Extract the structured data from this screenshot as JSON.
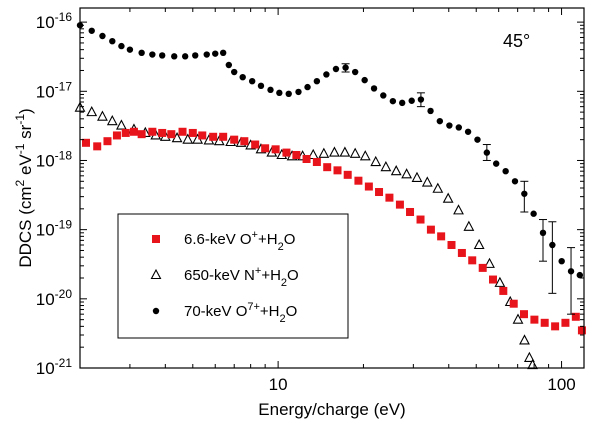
{
  "chart_data": {
    "type": "scatter",
    "xlabel": "Energy/charge (eV)",
    "ylabel_parts": [
      "DDCS (cm",
      "2",
      " eV",
      "-1",
      " sr",
      "-1",
      ")"
    ],
    "xlim": [
      2,
      120
    ],
    "ylim": [
      1e-21,
      1.6e-16
    ],
    "x_scale": "log",
    "y_scale": "log",
    "grid": false,
    "legend_position": "lower-left",
    "annotation": "45°",
    "x_ticks": [
      {
        "value": 10,
        "label": "10"
      },
      {
        "value": 100,
        "label": "100"
      }
    ],
    "y_ticks": [
      {
        "value": 1e-21,
        "base": "10",
        "exp": "-21"
      },
      {
        "value": 1e-20,
        "base": "10",
        "exp": "-20"
      },
      {
        "value": 1e-19,
        "base": "10",
        "exp": "-19"
      },
      {
        "value": 1e-18,
        "base": "10",
        "exp": "-18"
      },
      {
        "value": 1e-17,
        "base": "10",
        "exp": "-17"
      },
      {
        "value": 1e-16,
        "base": "10",
        "exp": "-16"
      }
    ],
    "series": [
      {
        "name": "6.6-keV O+ + H2O",
        "legend_parts": [
          [
            "6.6-keV O",
            ""
          ],
          [
            "+",
            "sup"
          ],
          [
            "+H",
            ""
          ],
          [
            "2",
            "sub"
          ],
          [
            "O",
            ""
          ]
        ],
        "marker": "square",
        "color": "#e8141b",
        "points": [
          [
            2.1,
            1.8e-18
          ],
          [
            2.3,
            1.6e-18
          ],
          [
            2.5,
            1.9e-18
          ],
          [
            2.7,
            2.3e-18
          ],
          [
            2.9,
            2.5e-18
          ],
          [
            3.1,
            2.6e-18
          ],
          [
            3.3,
            2.4e-18
          ],
          [
            3.6,
            2.6e-18
          ],
          [
            3.9,
            2.5e-18
          ],
          [
            4.2,
            2.4e-18
          ],
          [
            4.6,
            2.6e-18
          ],
          [
            5.0,
            2.5e-18
          ],
          [
            5.4,
            2.3e-18
          ],
          [
            5.9,
            2.2e-18
          ],
          [
            6.4,
            2.2e-18
          ],
          [
            7.0,
            2e-18
          ],
          [
            7.6,
            1.9e-18
          ],
          [
            8.3,
            1.7e-18
          ],
          [
            9.0,
            1.5e-18
          ],
          [
            9.8,
            1.45e-18
          ],
          [
            10.7,
            1.3e-18
          ],
          [
            11.6,
            1.2e-18
          ],
          [
            12.6,
            1.05e-18
          ],
          [
            13.7,
            9.5e-19
          ],
          [
            14.9,
            8e-19
          ],
          [
            16.2,
            7.2e-19
          ],
          [
            17.6,
            6.2e-19
          ],
          [
            19.2,
            5.1e-19
          ],
          [
            20.9,
            4.2e-19
          ],
          [
            22.7,
            3.5e-19
          ],
          [
            24.7,
            2.9e-19
          ],
          [
            26.9,
            2.3e-19
          ],
          [
            29.2,
            1.8e-19
          ],
          [
            31.8,
            1.4e-19
          ],
          [
            34.6,
            1e-19
          ],
          [
            37.6,
            8e-20
          ],
          [
            40.9,
            6e-20
          ],
          [
            44.5,
            4.6e-20
          ],
          [
            48.4,
            3.6e-20
          ],
          [
            52.7,
            2.8e-20
          ],
          [
            57.3,
            1.9e-20
          ],
          [
            62.3,
            1.3e-20
          ],
          [
            67.8,
            8.5e-21
          ],
          [
            73.7,
            6e-21
          ],
          [
            80.2,
            5e-21
          ],
          [
            87.2,
            4.5e-21
          ],
          [
            94.9,
            4e-21
          ],
          [
            103.2,
            4.5e-21
          ],
          [
            112.3,
            5.5e-21
          ],
          [
            118,
            3.5e-21
          ]
        ]
      },
      {
        "name": "650-keV N+ + H2O",
        "legend_parts": [
          [
            "650-keV N",
            ""
          ],
          [
            "+",
            "sup"
          ],
          [
            "+H",
            ""
          ],
          [
            "2",
            "sub"
          ],
          [
            "O",
            ""
          ]
        ],
        "marker": "triangle",
        "color": "#000000",
        "points": [
          [
            2.0,
            5.8e-18
          ],
          [
            2.2,
            5e-18
          ],
          [
            2.4,
            4.3e-18
          ],
          [
            2.6,
            3.7e-18
          ],
          [
            2.8,
            3.2e-18
          ],
          [
            3.1,
            2.8e-18
          ],
          [
            3.4,
            2.5e-18
          ],
          [
            3.7,
            2.3e-18
          ],
          [
            4.0,
            2.2e-18
          ],
          [
            4.4,
            2.1e-18
          ],
          [
            4.8,
            2e-18
          ],
          [
            5.2,
            2e-18
          ],
          [
            5.7,
            1.95e-18
          ],
          [
            6.2,
            1.9e-18
          ],
          [
            6.8,
            1.85e-18
          ],
          [
            7.4,
            1.8e-18
          ],
          [
            8.0,
            1.65e-18
          ],
          [
            8.7,
            1.45e-18
          ],
          [
            9.5,
            1.3e-18
          ],
          [
            10.3,
            1.2e-18
          ],
          [
            11.2,
            1.15e-18
          ],
          [
            12.2,
            1.15e-18
          ],
          [
            13.3,
            1.2e-18
          ],
          [
            14.5,
            1.25e-18
          ],
          [
            15.8,
            1.3e-18
          ],
          [
            17.2,
            1.3e-18
          ],
          [
            18.7,
            1.25e-18
          ],
          [
            20.3,
            1.15e-18
          ],
          [
            22.1,
            9.5e-19
          ],
          [
            24.0,
            8e-19
          ],
          [
            26.1,
            7e-19
          ],
          [
            28.4,
            6.3e-19
          ],
          [
            30.9,
            5.6e-19
          ],
          [
            33.6,
            4.8e-19
          ],
          [
            36.6,
            3.9e-19
          ],
          [
            39.8,
            2.8e-19
          ],
          [
            43.3,
            1.9e-19
          ],
          [
            47.1,
            1.1e-19
          ],
          [
            51.2,
            6e-20
          ],
          [
            55.7,
            3.2e-20
          ],
          [
            60.6,
            1.7e-20
          ],
          [
            65.9,
            9e-21
          ],
          [
            70.2,
            5e-21
          ],
          [
            74.0,
            2.5e-21
          ],
          [
            77.0,
            1.4e-21
          ],
          [
            79.0,
            1.1e-21
          ]
        ]
      },
      {
        "name": "70-keV O7+ + H2O",
        "legend_parts": [
          [
            "70-keV O",
            ""
          ],
          [
            "7+",
            "sup"
          ],
          [
            "+H",
            ""
          ],
          [
            "2",
            "sub"
          ],
          [
            "O",
            ""
          ]
        ],
        "marker": "circle",
        "color": "#000000",
        "points": [
          [
            2.0,
            9e-17
          ],
          [
            2.2,
            7.5e-17
          ],
          [
            2.4,
            6.3e-17
          ],
          [
            2.6,
            5.3e-17
          ],
          [
            2.8,
            4.5e-17
          ],
          [
            3.0,
            4e-17
          ],
          [
            3.3,
            3.6e-17
          ],
          [
            3.6,
            3.4e-17
          ],
          [
            3.9,
            3.3e-17
          ],
          [
            4.3,
            3.2e-17
          ],
          [
            4.7,
            3.2e-17
          ],
          [
            5.1,
            3.3e-17
          ],
          [
            5.6,
            3.4e-17
          ],
          [
            6.0,
            3.5e-17
          ],
          [
            6.4,
            3.6e-17
          ],
          [
            6.7,
            2.4e-17
          ],
          [
            7.0,
            1.9e-17
          ],
          [
            7.5,
            1.6e-17
          ],
          [
            8.1,
            1.4e-17
          ],
          [
            8.7,
            1.2e-17
          ],
          [
            9.4,
            1.05e-17
          ],
          [
            10.1,
            9.5e-18
          ],
          [
            10.9,
            9.2e-18
          ],
          [
            11.8,
            9.8e-18
          ],
          [
            12.7,
            1.15e-17
          ],
          [
            13.7,
            1.4e-17
          ],
          [
            14.8,
            1.75e-17
          ],
          [
            16.0,
            2.1e-17
          ],
          [
            17.3,
            2.2e-17
          ],
          [
            18.7,
            1.9e-17
          ],
          [
            20.2,
            1.45e-17
          ],
          [
            21.8,
            1.1e-17
          ],
          [
            23.5,
            8.7e-18
          ],
          [
            25.4,
            7.2e-18
          ],
          [
            27.4,
            6.8e-18
          ],
          [
            29.6,
            7.3e-18
          ],
          [
            31.9,
            7.6e-18
          ],
          [
            34.5,
            5.2e-18
          ],
          [
            37.2,
            3.7e-18
          ],
          [
            40.2,
            3.2e-18
          ],
          [
            43.4,
            3e-18
          ],
          [
            46.8,
            2.6e-18
          ],
          [
            50.5,
            2e-18
          ],
          [
            54.5,
            1.3e-18
          ],
          [
            58.8,
            9e-19
          ],
          [
            63.5,
            7e-19
          ],
          [
            68.5,
            5e-19
          ],
          [
            73.9,
            3.3e-19
          ],
          [
            79.7,
            1.7e-19
          ],
          [
            86.0,
            9e-20
          ],
          [
            92.8,
            6e-20
          ],
          [
            100.1,
            3.5e-20
          ],
          [
            108.0,
            2.5e-20
          ],
          [
            116.0,
            2.2e-20
          ]
        ],
        "error_bars": [
          [
            17.3,
            2.2e-17,
            1.9e-17,
            2.5e-17
          ],
          [
            31.9,
            7.6e-18,
            6e-18,
            9.5e-18
          ],
          [
            54.5,
            1.3e-18,
            1e-18,
            1.7e-18
          ],
          [
            73.9,
            3.3e-19,
            1.8e-19,
            5e-19
          ],
          [
            86.0,
            9e-20,
            3.5e-20,
            1.4e-19
          ],
          [
            92.8,
            6e-20,
            1.2e-20,
            1.3e-19
          ],
          [
            108.0,
            2.5e-20,
            6e-21,
            5.5e-20
          ]
        ]
      }
    ]
  }
}
